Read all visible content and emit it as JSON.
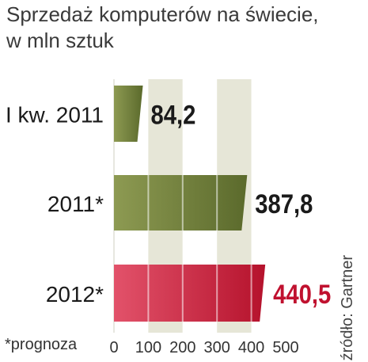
{
  "header": {
    "title_line1": "Sprzedaż komputerów na świecie,",
    "title_line2": "w mln sztuk"
  },
  "footnote": "*prognoza",
  "source": "źródło: Gartner",
  "colors": {
    "olive_dark": "#5b6a2c",
    "olive_light": "#8d9a52",
    "red_dark": "#b5122c",
    "red_light": "#e2526a",
    "red_label": "#c0112f",
    "band": "#e6e6d7"
  },
  "chart_data": {
    "type": "bar",
    "orientation": "horizontal",
    "categories": [
      "I kw. 2011",
      "2011*",
      "2012*"
    ],
    "values": [
      84.2,
      387.8,
      440.5
    ],
    "value_labels": [
      "84,2",
      "387,8",
      "440,5"
    ],
    "xticks": [
      "0",
      "100",
      "200",
      "300",
      "400",
      "500"
    ],
    "xlim": [
      0,
      500
    ],
    "grid": true
  }
}
